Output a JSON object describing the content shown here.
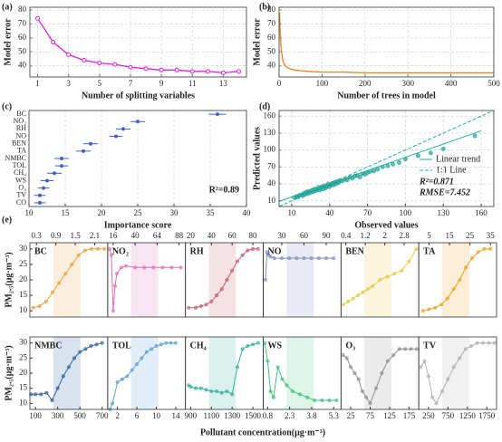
{
  "chart_data": [
    {
      "type": "line",
      "panel": "(a)",
      "xlabel": "Number of splitting variables",
      "ylabel": "Model error",
      "x": [
        1,
        2,
        3,
        4,
        5,
        6,
        7,
        8,
        9,
        10,
        11,
        12,
        13,
        14
      ],
      "values": [
        74,
        57,
        48,
        44,
        42,
        41,
        39,
        38,
        37,
        37,
        36,
        36,
        35,
        36
      ],
      "color": "#e020e0",
      "markers": true,
      "grid": true,
      "xlim": [
        0.5,
        14.5
      ],
      "xticks": [
        1,
        3,
        5,
        7,
        9,
        11,
        13
      ],
      "ylim": [
        32,
        82
      ],
      "yticks": [
        40,
        50,
        60,
        70,
        80
      ]
    },
    {
      "type": "line",
      "panel": "(b)",
      "xlabel": "Number of trees in model",
      "ylabel": "Model error",
      "x": [
        1,
        3,
        5,
        8,
        12,
        18,
        25,
        35,
        50,
        70,
        100,
        150,
        200,
        250,
        300,
        350,
        400,
        450,
        500
      ],
      "values": [
        78,
        62,
        52,
        45,
        41,
        39,
        38,
        37,
        36.5,
        36,
        35.5,
        35.5,
        35,
        35,
        35,
        35,
        35,
        35,
        35
      ],
      "color": "#f08020",
      "markers": false,
      "grid": true,
      "xlim": [
        0,
        500
      ],
      "xticks": [
        0,
        100,
        200,
        300,
        400,
        500
      ],
      "ylim": [
        32,
        82
      ],
      "yticks": [
        40,
        50,
        60,
        70,
        80
      ]
    },
    {
      "type": "errorbar",
      "panel": "(c)",
      "xlabel": "Importance score",
      "annotation": "R²=0.89",
      "categories": [
        "BC",
        "NO₂",
        "RH",
        "NO",
        "BEN",
        "TA",
        "NMBC",
        "TOL",
        "CH₄",
        "WS",
        "O₃",
        "TV",
        "CO"
      ],
      "values": [
        36,
        25,
        23,
        22,
        18.5,
        17.5,
        14.5,
        14.5,
        13.5,
        12.5,
        12,
        11.5,
        11.5
      ],
      "errors": [
        1.2,
        1,
        1,
        0.9,
        1,
        1,
        1,
        0.9,
        1,
        0.9,
        0.8,
        0.8,
        0.8
      ],
      "color": "#4060d0",
      "grid": true,
      "xlim": [
        10,
        40
      ],
      "xticks": [
        10,
        15,
        20,
        25,
        30,
        35,
        40
      ]
    },
    {
      "type": "scatter",
      "panel": "(d)",
      "xlabel": "Observed values",
      "ylabel": "Predicted values",
      "x": [
        12,
        14,
        15,
        16,
        18,
        19,
        20,
        21,
        22,
        23,
        24,
        25,
        26,
        27,
        28,
        29,
        30,
        31,
        32,
        33,
        34,
        35,
        36,
        37,
        38,
        39,
        40,
        41,
        42,
        43,
        44,
        45,
        46,
        47,
        48,
        50,
        52,
        54,
        56,
        58,
        60,
        62,
        64,
        66,
        68,
        70,
        72,
        75,
        78,
        82,
        86,
        90,
        95,
        100,
        110,
        120,
        130,
        155
      ],
      "y": [
        16,
        18,
        17,
        20,
        21,
        19,
        24,
        22,
        26,
        23,
        27,
        25,
        29,
        26,
        31,
        28,
        30,
        34,
        29,
        33,
        35,
        31,
        37,
        33,
        36,
        40,
        35,
        39,
        41,
        38,
        43,
        40,
        44,
        42,
        46,
        45,
        48,
        47,
        52,
        50,
        54,
        55,
        52,
        58,
        57,
        60,
        62,
        63,
        66,
        70,
        72,
        75,
        78,
        84,
        90,
        95,
        102,
        125
      ],
      "color": "#20b0a0",
      "trend": {
        "name": "Linear trend",
        "x": [
          0,
          160
        ],
        "y": [
          9,
          134
        ]
      },
      "identity": {
        "name": "1:1 Line"
      },
      "annotations": [
        "R²=0.871",
        "RMSE=7.452"
      ],
      "grid": true,
      "xlim": [
        0,
        170
      ],
      "xticks": [
        10,
        40,
        70,
        100,
        130,
        160
      ],
      "ylim": [
        0,
        170
      ],
      "yticks": [
        10,
        40,
        70,
        100,
        130,
        160
      ]
    },
    {
      "type": "partial-dependence",
      "panel": "(e)",
      "ylabel": "PM₂.₅(μg·m⁻³)",
      "xlabel": "Pollutant concentration(μg·m⁻³)",
      "ylim": [
        8,
        32
      ],
      "yticks": [
        10,
        15,
        20,
        25,
        30
      ],
      "subplots": [
        {
          "name": "BC",
          "color": "#e8a040",
          "xlim": [
            0.1,
            2.5
          ],
          "xticks": [
            0.3,
            0.9,
            1.5,
            2.1
          ],
          "x": [
            0.2,
            0.4,
            0.6,
            0.8,
            1.0,
            1.2,
            1.4,
            1.6,
            1.8,
            2.0,
            2.2,
            2.4
          ],
          "values": [
            11,
            11.5,
            13,
            16,
            19,
            22,
            25,
            28,
            29.5,
            30,
            30,
            30
          ]
        },
        {
          "name": "NO₂",
          "color": "#e070b0",
          "xlim": [
            10,
            95
          ],
          "xticks": [
            16,
            40,
            64,
            88
          ],
          "x": [
            12,
            14,
            16,
            18,
            20,
            25,
            30,
            40,
            50,
            60,
            70,
            80,
            90
          ],
          "values": [
            30,
            28,
            10,
            18,
            22,
            24,
            24.5,
            24,
            24,
            24,
            24,
            24,
            24
          ]
        },
        {
          "name": "RH",
          "color": "#c06070",
          "xlim": [
            15,
            90
          ],
          "xticks": [
            20,
            40,
            60,
            80
          ],
          "x": [
            18,
            25,
            30,
            35,
            40,
            45,
            50,
            55,
            60,
            65,
            70,
            75,
            80,
            85
          ],
          "values": [
            11,
            11,
            11.5,
            12,
            13,
            15,
            17,
            20,
            23,
            26,
            28,
            29.5,
            30,
            30
          ]
        },
        {
          "name": "NO",
          "color": "#8090c0",
          "xlim": [
            5,
            110
          ],
          "xticks": [
            30,
            60,
            90
          ],
          "x": [
            8,
            10,
            12,
            15,
            20,
            30,
            40,
            50,
            60,
            70,
            80,
            90,
            100
          ],
          "values": [
            20,
            29,
            28,
            27.5,
            27,
            27,
            27,
            27,
            27,
            27,
            27,
            27,
            27
          ]
        },
        {
          "name": "BEN",
          "color": "#e8c840",
          "xlim": [
            0.2,
            3.4
          ],
          "xticks": [
            0.4,
            1.2,
            2.0,
            2.8
          ],
          "x": [
            0.3,
            0.5,
            0.7,
            0.9,
            1.1,
            1.3,
            1.5,
            1.8,
            2.1,
            2.4,
            2.7,
            3.0,
            3.3
          ],
          "values": [
            12,
            13,
            14,
            15,
            16,
            17,
            18,
            20,
            21,
            22,
            23,
            26,
            30
          ]
        },
        {
          "name": "TA",
          "color": "#f0a020",
          "xlim": [
            0,
            38
          ],
          "xticks": [
            5,
            15,
            25,
            35
          ],
          "x": [
            2,
            5,
            8,
            11,
            14,
            17,
            20,
            23,
            26,
            29,
            32,
            35
          ],
          "values": [
            10,
            10.5,
            11,
            12,
            14,
            17,
            20,
            24,
            27,
            29,
            30,
            30
          ]
        },
        {
          "name": "NMBC",
          "color": "#3060a0",
          "xlim": [
            50,
            750
          ],
          "xticks": [
            100,
            300,
            500,
            700
          ],
          "x": [
            60,
            100,
            150,
            200,
            250,
            300,
            350,
            400,
            450,
            500,
            550,
            600,
            650,
            700
          ],
          "values": [
            13,
            13,
            13,
            13.5,
            11,
            15,
            19,
            22,
            25,
            27,
            28,
            29,
            29.5,
            30
          ]
        },
        {
          "name": "TOL",
          "color": "#60a0d0",
          "xlim": [
            0,
            16
          ],
          "xticks": [
            2,
            6,
            10,
            14
          ],
          "x": [
            0.5,
            1,
            2,
            3,
            4,
            5,
            6,
            7,
            8,
            9,
            10,
            11,
            12,
            13,
            14
          ],
          "values": [
            8,
            10,
            17,
            18,
            19,
            21,
            23,
            25,
            27,
            28,
            29,
            29.5,
            30,
            30,
            30
          ]
        },
        {
          "name": "CH₄",
          "color": "#30b0a0",
          "xlim": [
            850,
            1600
          ],
          "xticks": [
            900,
            1100,
            1300,
            1500
          ],
          "x": [
            880,
            900,
            950,
            1000,
            1050,
            1100,
            1150,
            1200,
            1250,
            1300,
            1350,
            1400,
            1450,
            1500,
            1550
          ],
          "values": [
            16,
            15.5,
            15,
            15,
            14.5,
            14,
            14,
            13.5,
            14,
            13,
            22,
            28,
            29,
            29.5,
            30
          ]
        },
        {
          "name": "WS",
          "color": "#40c080",
          "xlim": [
            0.5,
            5.8
          ],
          "xticks": [
            0.8,
            2.3,
            3.8,
            5.3
          ],
          "x": [
            0.6,
            0.8,
            1.0,
            1.2,
            1.5,
            1.8,
            2.1,
            2.5,
            3.0,
            3.5,
            4.0,
            4.5,
            5.0,
            5.5
          ],
          "values": [
            30,
            24,
            14,
            12,
            22,
            18,
            16,
            14,
            13,
            12,
            11,
            11,
            11,
            11
          ]
        },
        {
          "name": "O₃",
          "color": "#909090",
          "xlim": [
            0,
            200
          ],
          "xticks": [
            25,
            75,
            125,
            175
          ],
          "x": [
            5,
            15,
            25,
            35,
            45,
            55,
            65,
            75,
            90,
            105,
            120,
            135,
            150,
            165,
            180,
            195
          ],
          "values": [
            26,
            25,
            22,
            20,
            18,
            14,
            12,
            10,
            15,
            20,
            24,
            26,
            28,
            28,
            28,
            28
          ]
        },
        {
          "name": "TV",
          "color": "#b0b0b0",
          "xlim": [
            0,
            2000
          ],
          "xticks": [
            250,
            750,
            1250,
            1750
          ],
          "x": [
            50,
            150,
            250,
            350,
            450,
            600,
            750,
            900,
            1050,
            1200,
            1350,
            1500,
            1650,
            1800,
            1950
          ],
          "values": [
            22,
            24,
            19,
            12,
            10,
            14,
            18,
            22,
            25,
            28,
            29,
            30,
            30,
            30,
            30
          ]
        }
      ]
    }
  ]
}
